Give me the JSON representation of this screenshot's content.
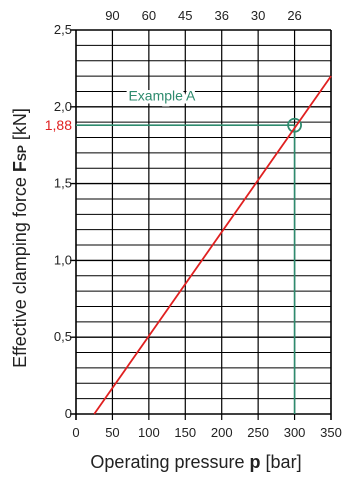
{
  "chart_data": {
    "type": "line",
    "xlabel_prefix": "Operating pressure",
    "xlabel_var": "p",
    "xlabel_unit": "[bar]",
    "ylabel_prefix": "Effective clamping force",
    "ylabel_var": "F",
    "ylabel_sub": "SP",
    "ylabel_unit": "[kN]",
    "xlim": [
      0,
      350
    ],
    "ylim": [
      0,
      2.5
    ],
    "x_ticks": [
      0,
      50,
      100,
      150,
      200,
      250,
      300,
      350
    ],
    "x_tick_labels": [
      "0",
      "50",
      "100",
      "150",
      "200",
      "250",
      "300",
      "350"
    ],
    "y_ticks": [
      0,
      0.5,
      1.0,
      1.5,
      2.0,
      2.5
    ],
    "y_tick_labels": [
      "0",
      "0,5",
      "1,0",
      "1,5",
      "2,0",
      "2,5"
    ],
    "top_ticks": [
      {
        "x": 50,
        "label": "90"
      },
      {
        "x": 100,
        "label": "60"
      },
      {
        "x": 150,
        "label": "45"
      },
      {
        "x": 200,
        "label": "36"
      },
      {
        "x": 250,
        "label": "30"
      },
      {
        "x": 300,
        "label": "26"
      }
    ],
    "minor_y_step": 0.1,
    "grid": true,
    "series": [
      {
        "x": [
          25,
          350
        ],
        "y": [
          0,
          2.2
        ],
        "color": "#e02020"
      }
    ],
    "annotation": {
      "label": "Example A",
      "x": 300,
      "y": 1.88,
      "y_label": "1,88",
      "color": "#2e8b6e",
      "y_label_color": "#e02020"
    }
  }
}
